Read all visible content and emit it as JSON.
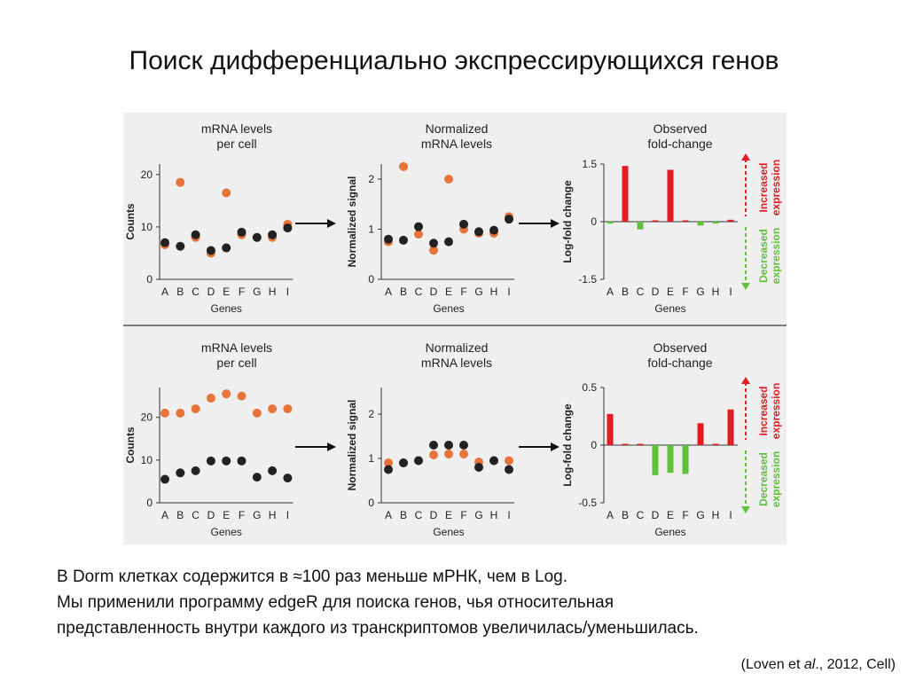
{
  "slide": {
    "title": "Поиск дифференциально экспрессирующихся генов",
    "body_lines": [
      "В Dorm клетках содержится в ≈100 раз меньше мРНК, чем в Log.",
      "Мы применили программу edgeR для поиска генов, чья относительная",
      "представленность внутри каждого из транскриптомов увеличилась/уменьшилась."
    ],
    "citation": {
      "prefix": "(Loven et ",
      "italic": "al",
      "suffix": "., 2012, Cell)"
    }
  },
  "colors": {
    "orange": "#e8743a",
    "black": "#222222",
    "red": "#e31c24",
    "green": "#5fc13a"
  },
  "labels": {
    "panel1_title": [
      "mRNA levels",
      "per cell"
    ],
    "panel2_title": [
      "Normalized",
      "mRNA levels"
    ],
    "panel3_title": [
      "Observed",
      "fold-change"
    ],
    "xlabel": "Genes",
    "ylabel_counts": "Counts",
    "ylabel_normalized": "Normalized signal",
    "ylabel_logfold": "Log-fold change",
    "increased": [
      "Increased",
      "expression"
    ],
    "decreased": [
      "Decreased",
      "expression"
    ]
  },
  "chart_data": [
    {
      "type": "scatter",
      "row": "top",
      "panel": "mRNA levels per cell",
      "categories": [
        "A",
        "B",
        "C",
        "D",
        "E",
        "F",
        "G",
        "H",
        "I"
      ],
      "yticks": [
        "0",
        "10",
        "20"
      ],
      "ylim": [
        0,
        22
      ],
      "series": [
        {
          "color": "orange",
          "values": [
            6.6,
            18.5,
            8,
            5,
            16.5,
            8.5,
            8,
            8,
            10.5
          ]
        },
        {
          "color": "black",
          "values": [
            7,
            6.3,
            8.5,
            5.5,
            6,
            9,
            8,
            8.5,
            9.8
          ]
        }
      ]
    },
    {
      "type": "scatter",
      "row": "top",
      "panel": "Normalized mRNA levels",
      "categories": [
        "A",
        "B",
        "C",
        "D",
        "E",
        "F",
        "G",
        "H",
        "I"
      ],
      "yticks": [
        "0",
        "1",
        "2"
      ],
      "ylim": [
        0,
        2.3
      ],
      "series": [
        {
          "color": "orange",
          "values": [
            0.75,
            2.25,
            0.9,
            0.58,
            2.0,
            1.0,
            0.92,
            0.92,
            1.25
          ]
        },
        {
          "color": "black",
          "values": [
            0.8,
            0.78,
            1.05,
            0.72,
            0.75,
            1.1,
            0.95,
            0.98,
            1.2
          ]
        }
      ]
    },
    {
      "type": "bar",
      "row": "top",
      "panel": "Observed fold-change",
      "categories": [
        "A",
        "B",
        "C",
        "D",
        "E",
        "F",
        "G",
        "H",
        "I"
      ],
      "yticks": [
        "1.5",
        "0",
        "-1.5"
      ],
      "ylim": [
        -1.5,
        1.5
      ],
      "values": [
        -0.05,
        1.45,
        -0.2,
        0,
        1.35,
        0,
        -0.1,
        -0.05,
        0.05
      ]
    },
    {
      "type": "scatter",
      "row": "bottom",
      "panel": "mRNA levels per cell",
      "categories": [
        "A",
        "B",
        "C",
        "D",
        "E",
        "F",
        "G",
        "H",
        "I"
      ],
      "yticks": [
        "0",
        "10",
        "20"
      ],
      "ylim": [
        0,
        27
      ],
      "series": [
        {
          "color": "orange",
          "values": [
            21,
            21,
            22,
            24.5,
            25.5,
            25,
            21,
            22,
            22
          ]
        },
        {
          "color": "black",
          "values": [
            5.5,
            7,
            7.5,
            9.8,
            9.8,
            9.8,
            6,
            7.5,
            5.8
          ]
        }
      ]
    },
    {
      "type": "scatter",
      "row": "bottom",
      "panel": "Normalized mRNA levels",
      "categories": [
        "A",
        "B",
        "C",
        "D",
        "E",
        "F",
        "G",
        "H",
        "I"
      ],
      "yticks": [
        "0",
        "1",
        "2"
      ],
      "ylim": [
        0,
        2.6
      ],
      "series": [
        {
          "color": "orange",
          "values": [
            0.9,
            0.9,
            0.95,
            1.08,
            1.1,
            1.1,
            0.92,
            0.95,
            0.95
          ]
        },
        {
          "color": "black",
          "values": [
            0.75,
            0.9,
            0.95,
            1.3,
            1.3,
            1.3,
            0.8,
            0.95,
            0.75
          ]
        }
      ]
    },
    {
      "type": "bar",
      "row": "bottom",
      "panel": "Observed fold-change",
      "categories": [
        "A",
        "B",
        "C",
        "D",
        "E",
        "F",
        "G",
        "H",
        "I"
      ],
      "yticks": [
        "0.5",
        "0",
        "-0.5"
      ],
      "ylim": [
        -0.5,
        0.5
      ],
      "values": [
        0.27,
        0,
        0,
        -0.26,
        -0.24,
        -0.25,
        0.19,
        0,
        0.31
      ]
    }
  ]
}
